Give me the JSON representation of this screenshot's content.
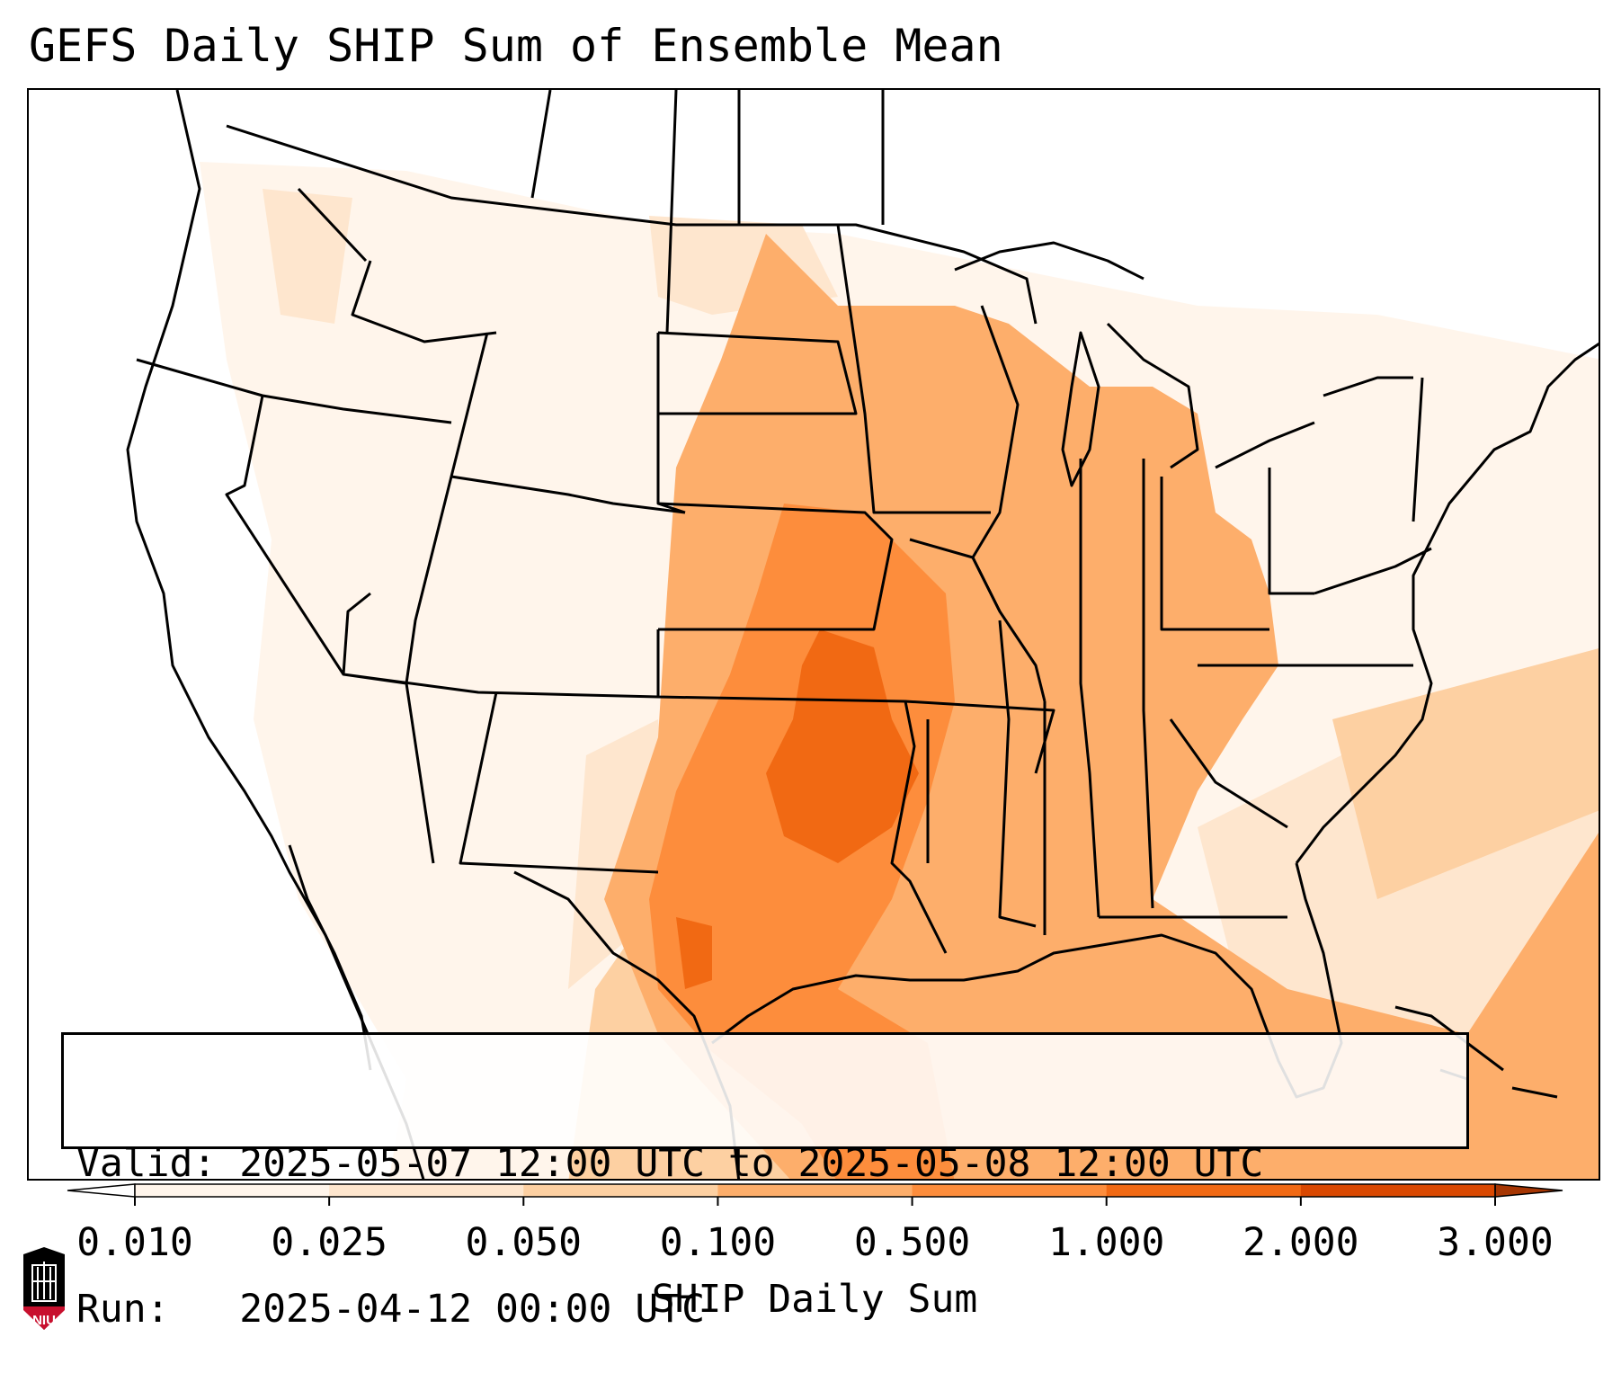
{
  "title": "GEFS Daily SHIP Sum of Ensemble Mean",
  "info": {
    "valid_label": "Valid:",
    "valid_value": "2025-05-07 12:00 UTC to 2025-05-08 12:00 UTC",
    "run_label": "Run:",
    "run_value": "2025-04-12 00:00 UTC"
  },
  "colorbar": {
    "label": "SHIP Daily Sum",
    "ticks": [
      "0.010",
      "0.025",
      "0.050",
      "0.100",
      "0.500",
      "1.000",
      "2.000",
      "3.000"
    ],
    "bin_colors": [
      "#fff5eb",
      "#fee6ce",
      "#fdd0a2",
      "#fdae6b",
      "#fd8d3c",
      "#f16913",
      "#d94801"
    ],
    "under_color": "#ffffff",
    "over_color": "#a63603",
    "extend": "both"
  },
  "logo": {
    "text": "NIU",
    "color": "#c8102e"
  }
}
